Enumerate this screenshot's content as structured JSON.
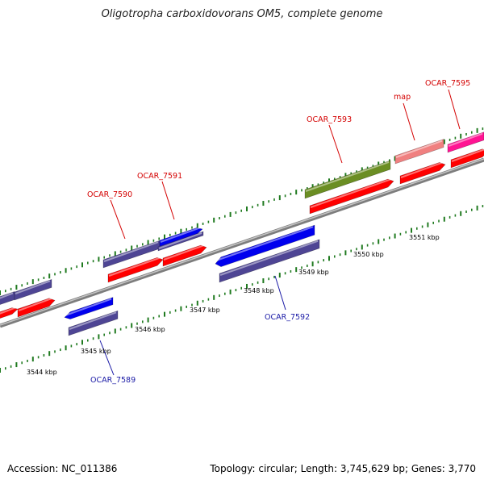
{
  "title": "Oligotropha carboxidovorans OM5, complete genome",
  "footer": {
    "accession": "Accession: NC_011386",
    "topology": "Topology: circular; Length: 3,745,629 bp; Genes: 3,770"
  },
  "colors": {
    "backbone": "#9a9a9a",
    "cds": "#ff0000",
    "gene_purple": "#4e4594",
    "gene_blue": "#0000ee",
    "gene_olive": "#6b8e23",
    "gene_salmon": "#f08080",
    "gene_magenta": "#ff1493",
    "tick": "#1f7a1f",
    "label_forward": "#d40000",
    "label_reverse": "#1a1aa6"
  },
  "scale_labels": [
    "3544 kbp",
    "3545 kbp",
    "3546 kbp",
    "3547 kbp",
    "3548 kbp",
    "3549 kbp",
    "3550 kbp",
    "3551 kbp"
  ],
  "gene_labels": [
    {
      "text": "OCAR_7590",
      "strand": "forward"
    },
    {
      "text": "OCAR_7591",
      "strand": "forward"
    },
    {
      "text": "OCAR_7593",
      "strand": "forward"
    },
    {
      "text": "map",
      "strand": "forward"
    },
    {
      "text": "OCAR_7595",
      "strand": "forward"
    },
    {
      "text": "OCAR_7592",
      "strand": "reverse"
    },
    {
      "text": "OCAR_7589",
      "strand": "reverse"
    }
  ]
}
